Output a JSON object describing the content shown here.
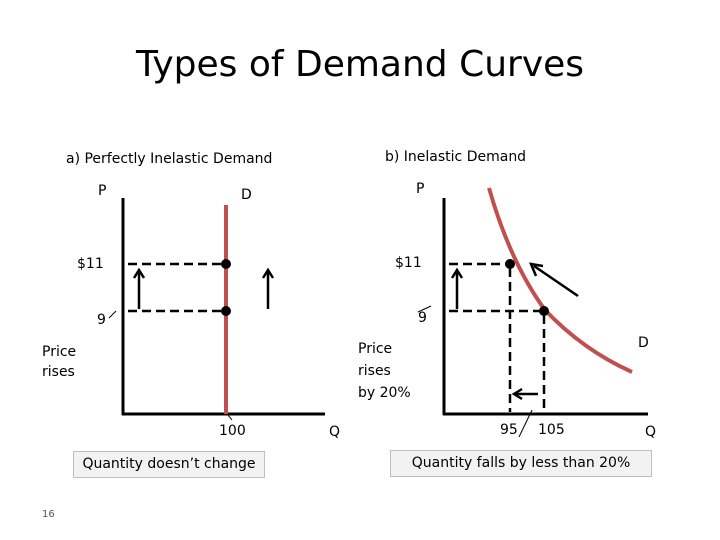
{
  "title": "Types of Demand Curves",
  "slide_number": "16",
  "colors": {
    "curve": "#c0504d",
    "axis": "#000000",
    "box_fill": "#f2f2f2",
    "box_border": "#bfbfbf"
  },
  "left": {
    "heading": "a) Perfectly Inelastic Demand",
    "axis_p": "P",
    "axis_q": "Q",
    "curve_label": "D",
    "price_high": "$11",
    "price_low": "9",
    "quantity": "100",
    "price_note": "Price rises",
    "quantity_note": "Quantity doesn’t change"
  },
  "right": {
    "heading": "b) Inelastic Demand",
    "axis_p": "P",
    "axis_q": "Q",
    "curve_label": "D",
    "price_high": "$11",
    "price_low": "9",
    "quantity_low": "95",
    "quantity_high": "105",
    "price_note_1": "Price",
    "price_note_2": "rises",
    "price_note_3": "by 20%",
    "quantity_note": "Quantity falls by less than 20%"
  }
}
